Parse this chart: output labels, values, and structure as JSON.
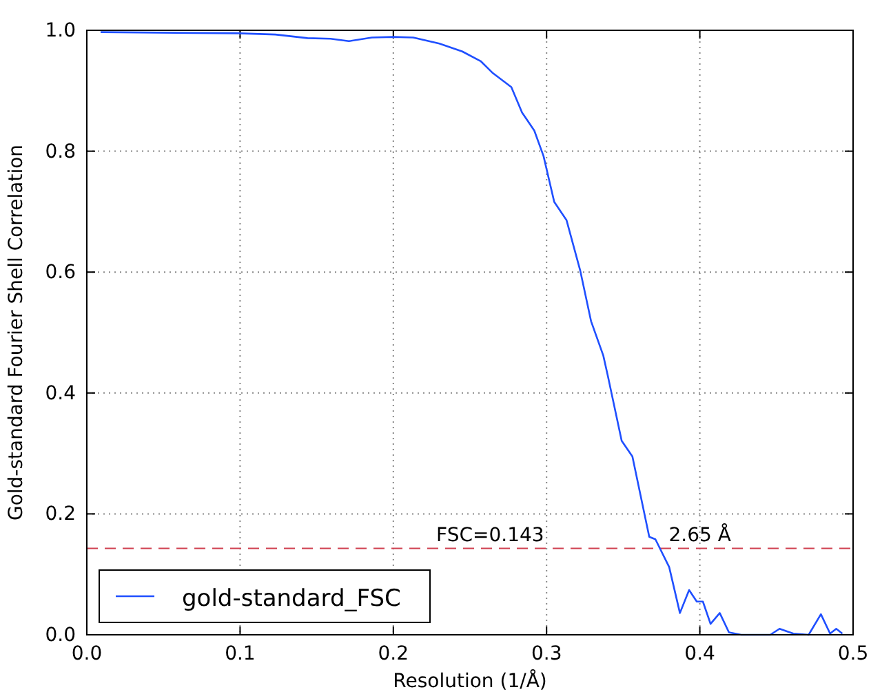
{
  "chart_data": {
    "type": "line",
    "xlabel": "Resolution (1/Å)",
    "ylabel": "Gold-standard Fourier Shell Correlation",
    "x": [
      0.009,
      0.099,
      0.123,
      0.144,
      0.159,
      0.171,
      0.186,
      0.2,
      0.213,
      0.23,
      0.245,
      0.257,
      0.265,
      0.277,
      0.284,
      0.292,
      0.298,
      0.305,
      0.313,
      0.322,
      0.329,
      0.337,
      0.34,
      0.349,
      0.356,
      0.367,
      0.371,
      0.38,
      0.387,
      0.393,
      0.398,
      0.402,
      0.407,
      0.413,
      0.419,
      0.423,
      0.427,
      0.446,
      0.452,
      0.461,
      0.471,
      0.479,
      0.485,
      0.489,
      0.493
    ],
    "series": [
      {
        "name": "gold-standard_FSC",
        "color": "#1f4fff",
        "values": [
          0.997,
          0.995,
          0.993,
          0.987,
          0.986,
          0.982,
          0.988,
          0.989,
          0.988,
          0.978,
          0.965,
          0.949,
          0.929,
          0.906,
          0.864,
          0.834,
          0.792,
          0.716,
          0.686,
          0.602,
          0.519,
          0.462,
          0.428,
          0.321,
          0.295,
          0.162,
          0.158,
          0.112,
          0.036,
          0.074,
          0.055,
          0.055,
          0.018,
          0.036,
          0.004,
          0.002,
          0.0,
          0.0,
          0.01,
          0.002,
          0.0,
          0.034,
          0.002,
          0.01,
          0.002
        ]
      }
    ],
    "xlim": [
      0,
      0.5
    ],
    "xticks": [
      {
        "value": 0,
        "label": "0.0"
      },
      0.1,
      0.2,
      0.3,
      0.4,
      0.5
    ],
    "ylim": [
      0,
      1
    ],
    "yticks": [
      {
        "value": 0,
        "label": "0.0"
      },
      0.2,
      0.4,
      0.6,
      0.8,
      {
        "value": 1,
        "label": "1.0"
      }
    ],
    "grid": true,
    "legend": "bottom left",
    "line_style": "solid",
    "marker": "none",
    "ref_lines": [
      {
        "axis": "y",
        "value": 0.143,
        "label": "FSC=0.143",
        "color": "#d04050",
        "line_style": "dashed"
      }
    ],
    "annotations": [
      {
        "text": "2.65 Å",
        "x": 0.377,
        "y": 0.143
      }
    ]
  }
}
